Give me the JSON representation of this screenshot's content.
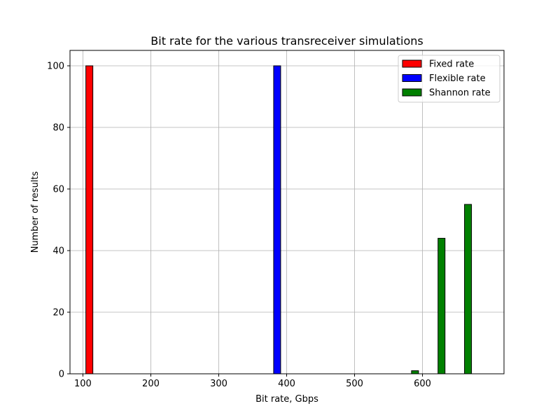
{
  "chart_data": {
    "type": "bar",
    "title": "Bit rate for the various transreceiver simulations",
    "xlabel": "Bit rate, Gbps",
    "ylabel": "Number of results",
    "xlim": [
      81,
      720
    ],
    "ylim": [
      0,
      105
    ],
    "xticks": [
      100,
      200,
      300,
      400,
      500,
      600
    ],
    "yticks": [
      0,
      20,
      40,
      60,
      80,
      100
    ],
    "grid": true,
    "legend_position": "top-right",
    "series": [
      {
        "name": "Fixed rate",
        "color": "#ff0000",
        "bars": [
          {
            "x": 109.5,
            "value": 100
          },
          {
            "x": 131,
            "value": 0
          }
        ]
      },
      {
        "name": "Flexible rate",
        "color": "#0000ff",
        "bars": [
          {
            "x": 130,
            "value": 0
          },
          {
            "x": 168,
            "value": 0
          },
          {
            "x": 205,
            "value": 0
          },
          {
            "x": 242,
            "value": 0
          },
          {
            "x": 282,
            "value": 0
          },
          {
            "x": 322,
            "value": 0
          },
          {
            "x": 358,
            "value": 0
          },
          {
            "x": 386,
            "value": 100
          }
        ]
      },
      {
        "name": "Shannon rate",
        "color": "#008000",
        "bars": [
          {
            "x": 400,
            "value": 0
          },
          {
            "x": 440,
            "value": 0
          },
          {
            "x": 477,
            "value": 0
          },
          {
            "x": 515,
            "value": 0
          },
          {
            "x": 553,
            "value": 0
          },
          {
            "x": 589,
            "value": 1
          },
          {
            "x": 628,
            "value": 44
          },
          {
            "x": 667,
            "value": 55
          }
        ]
      }
    ]
  }
}
